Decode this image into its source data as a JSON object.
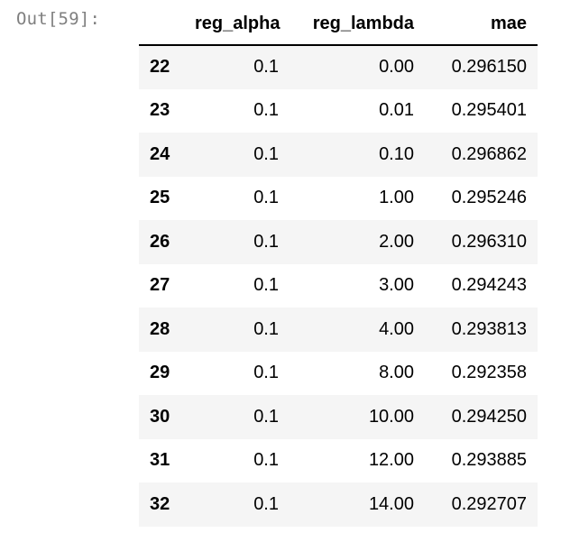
{
  "prompt": "Out[59]:",
  "table": {
    "columns": [
      "reg_alpha",
      "reg_lambda",
      "mae"
    ],
    "rows": [
      {
        "index": "22",
        "reg_alpha": "0.1",
        "reg_lambda": "0.00",
        "mae": "0.296150"
      },
      {
        "index": "23",
        "reg_alpha": "0.1",
        "reg_lambda": "0.01",
        "mae": "0.295401"
      },
      {
        "index": "24",
        "reg_alpha": "0.1",
        "reg_lambda": "0.10",
        "mae": "0.296862"
      },
      {
        "index": "25",
        "reg_alpha": "0.1",
        "reg_lambda": "1.00",
        "mae": "0.295246"
      },
      {
        "index": "26",
        "reg_alpha": "0.1",
        "reg_lambda": "2.00",
        "mae": "0.296310"
      },
      {
        "index": "27",
        "reg_alpha": "0.1",
        "reg_lambda": "3.00",
        "mae": "0.294243"
      },
      {
        "index": "28",
        "reg_alpha": "0.1",
        "reg_lambda": "4.00",
        "mae": "0.293813"
      },
      {
        "index": "29",
        "reg_alpha": "0.1",
        "reg_lambda": "8.00",
        "mae": "0.292358"
      },
      {
        "index": "30",
        "reg_alpha": "0.1",
        "reg_lambda": "10.00",
        "mae": "0.294250"
      },
      {
        "index": "31",
        "reg_alpha": "0.1",
        "reg_lambda": "12.00",
        "mae": "0.293885"
      },
      {
        "index": "32",
        "reg_alpha": "0.1",
        "reg_lambda": "14.00",
        "mae": "0.292707"
      }
    ]
  }
}
